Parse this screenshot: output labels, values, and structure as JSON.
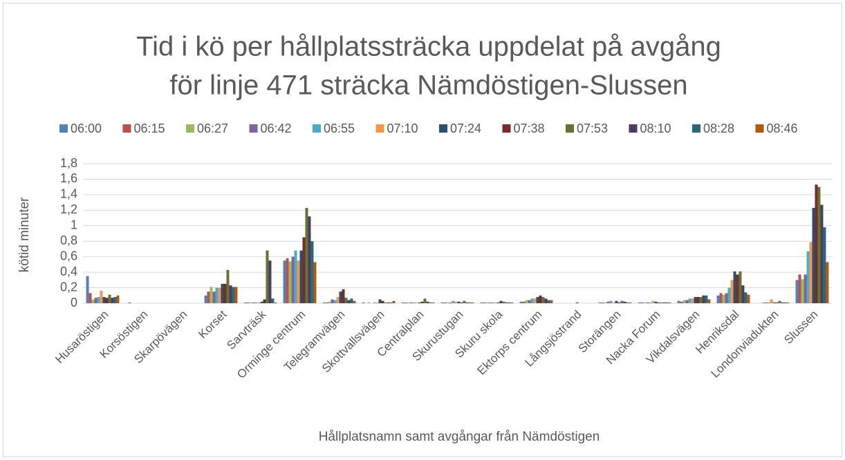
{
  "chart_data": {
    "type": "bar",
    "title": "Tid i kö per hållplatssträcka uppdelat på avgång",
    "subtitle": "för linje 471 sträcka Nämdöstigen-Slussen",
    "y_label": "kötid minuter",
    "x_label": "Hållplatsnamn samt avgångar från Nämdöstigen",
    "categories": [
      "Husaröstigen",
      "Korsöstigen",
      "Skarpövägen",
      "Korset",
      "Sarvträsk",
      "Orminge centrum",
      "Telegramvägen",
      "Skottvallsvägen",
      "Centralplan",
      "Skurustugan",
      "Skuru skola",
      "Ektorps centrum",
      "Långsjöstrand",
      "Storängen",
      "Nacka Forum",
      "Vikdalsvägen",
      "Henriksdal",
      "Londonviadukten",
      "Slussen"
    ],
    "series": [
      {
        "name": "06:00",
        "color": "#4f81bd",
        "values": [
          0.35,
          0,
          0,
          0.1,
          0.01,
          0.55,
          0.01,
          0.01,
          0.01,
          0.01,
          0.01,
          0.02,
          0,
          0.01,
          0.01,
          0.03,
          0.1,
          0,
          0.3
        ]
      },
      {
        "name": "06:15",
        "color": "#c0504d",
        "values": [
          0.13,
          0.01,
          0,
          0.15,
          0.01,
          0.58,
          0.01,
          0,
          0.01,
          0.01,
          0.01,
          0.02,
          0,
          0.01,
          0.01,
          0.02,
          0.13,
          0,
          0.37
        ]
      },
      {
        "name": "06:27",
        "color": "#9bbb59",
        "values": [
          0.05,
          0,
          0,
          0.21,
          0.01,
          0.54,
          0.02,
          0.01,
          0.01,
          0.01,
          0.01,
          0.04,
          0,
          0.01,
          0.01,
          0.04,
          0.11,
          0.01,
          0.31
        ]
      },
      {
        "name": "06:42",
        "color": "#8064a2",
        "values": [
          0.07,
          0,
          0,
          0.15,
          0.01,
          0.6,
          0.05,
          0,
          0.01,
          0.01,
          0.01,
          0.04,
          0,
          0.02,
          0.01,
          0.04,
          0.13,
          0.01,
          0.37
        ]
      },
      {
        "name": "06:55",
        "color": "#4bacc6",
        "values": [
          0.08,
          0,
          0,
          0.2,
          0.01,
          0.68,
          0.04,
          0.01,
          0.01,
          0.03,
          0.01,
          0.06,
          0,
          0.03,
          0.01,
          0.06,
          0.2,
          0.01,
          0.67
        ]
      },
      {
        "name": "07:10",
        "color": "#f79646",
        "values": [
          0.16,
          0,
          0,
          0.2,
          0.01,
          0.55,
          0.08,
          0.01,
          0.01,
          0.02,
          0.01,
          0.06,
          0,
          0.01,
          0.03,
          0.06,
          0.3,
          0.05,
          0.79
        ]
      },
      {
        "name": "07:24",
        "color": "#2c4d75",
        "values": [
          0.08,
          0,
          0,
          0.25,
          0.02,
          0.68,
          0.15,
          0.05,
          0.01,
          0.02,
          0.01,
          0.08,
          0.01,
          0.03,
          0.02,
          0.08,
          0.41,
          0.01,
          1.23
        ]
      },
      {
        "name": "07:38",
        "color": "#772c2a",
        "values": [
          0.07,
          0,
          0,
          0.25,
          0.05,
          0.85,
          0.18,
          0.03,
          0.02,
          0.01,
          0.03,
          0.1,
          0,
          0.01,
          0.01,
          0.08,
          0.37,
          0.01,
          1.53
        ]
      },
      {
        "name": "07:53",
        "color": "#5f7530",
        "values": [
          0.11,
          0,
          0,
          0.43,
          0.68,
          1.23,
          0.07,
          0.01,
          0.06,
          0.03,
          0.02,
          0.08,
          0,
          0.03,
          0.01,
          0.08,
          0.41,
          0.03,
          1.5
        ]
      },
      {
        "name": "08:10",
        "color": "#4d3b62",
        "values": [
          0.07,
          0,
          0,
          0.23,
          0.55,
          1.12,
          0.04,
          0.01,
          0.02,
          0.01,
          0.01,
          0.06,
          0,
          0.02,
          0.01,
          0.1,
          0.23,
          0.01,
          1.27
        ]
      },
      {
        "name": "08:28",
        "color": "#276a7c",
        "values": [
          0.08,
          0,
          0,
          0.21,
          0.06,
          0.8,
          0.06,
          0.01,
          0.01,
          0.01,
          0.01,
          0.04,
          0,
          0.01,
          0.01,
          0.1,
          0.14,
          0.01,
          0.98
        ]
      },
      {
        "name": "08:46",
        "color": "#b65708",
        "values": [
          0.1,
          0,
          0,
          0.21,
          0.01,
          0.53,
          0.03,
          0.03,
          0.01,
          0.01,
          0.01,
          0.04,
          0,
          0.01,
          0.01,
          0.05,
          0.11,
          0.01,
          0.53
        ]
      }
    ],
    "ylim": [
      0,
      1.8
    ],
    "yticks": [
      0,
      {
        "value": 0.2,
        "label": "0,2"
      },
      {
        "value": 0.4,
        "label": "0,4"
      },
      {
        "value": 0.6,
        "label": "0,6"
      },
      {
        "value": 0.8,
        "label": "0,8"
      },
      1,
      {
        "value": 1.2,
        "label": "1,2"
      },
      {
        "value": 1.4,
        "label": "1,4"
      },
      {
        "value": 1.6,
        "label": "1,6"
      },
      {
        "value": 1.8,
        "label": "1,8"
      }
    ],
    "grid": true,
    "legend": "top"
  }
}
